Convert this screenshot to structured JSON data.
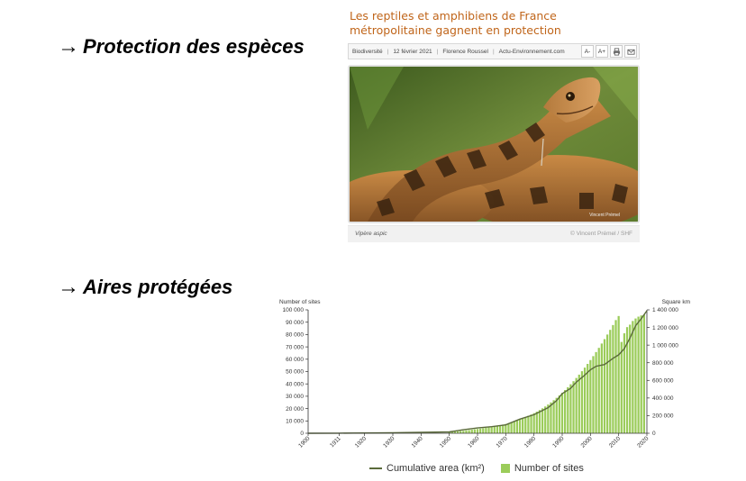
{
  "section1": {
    "arrow": "→",
    "title": "Protection des espèces"
  },
  "section2": {
    "arrow": "→",
    "title": "Aires protégées"
  },
  "article": {
    "title": "Les reptiles et amphibiens de France métropolitaine gagnent en protection",
    "meta": {
      "category": "Biodiversité",
      "date": "12 février 2021",
      "author": "Florence Roussel",
      "source": "Actu-Environnement.com"
    },
    "tools": {
      "font_minus": "A-",
      "font_plus": "A+",
      "print_icon": "printer-icon",
      "email_icon": "envelope-icon"
    },
    "photo_credit_overlay": "Vincent Prémel",
    "caption": "Vipère aspic",
    "credit": "© Vincent Prémel / SHF"
  },
  "chart_data": {
    "type": "bar",
    "ylabel_left": "Number of sites",
    "ylabel_right": "Square km",
    "yticks_left": [
      "100 000",
      "90 000",
      "80 000",
      "70 000",
      "60 000",
      "50 000",
      "40 000",
      "30 000",
      "20 000",
      "10 000",
      "0"
    ],
    "yticks_right": [
      "1 400 000",
      "1 200 000",
      "1 000 000",
      "800 000",
      "600 000",
      "400 000",
      "200 000",
      "0"
    ],
    "xticks": [
      "1900",
      "1911",
      "1920",
      "1930",
      "1940",
      "1950",
      "1960",
      "1970",
      "1980",
      "1990",
      "2000",
      "2010",
      "2020"
    ],
    "ylim_left": [
      0,
      100000
    ],
    "ylim_right": [
      0,
      1400000
    ],
    "xlim": [
      1900,
      2020
    ],
    "legend": {
      "line": "Cumulative area (km²)",
      "bars": "Number of sites"
    },
    "colors": {
      "bars": "#9bcc5a",
      "line": "#5a6a3a"
    },
    "bars": {
      "years": [
        1950,
        1951,
        1952,
        1953,
        1954,
        1955,
        1956,
        1957,
        1958,
        1959,
        1960,
        1961,
        1962,
        1963,
        1964,
        1965,
        1966,
        1967,
        1968,
        1969,
        1970,
        1971,
        1972,
        1973,
        1974,
        1975,
        1976,
        1977,
        1978,
        1979,
        1980,
        1981,
        1982,
        1983,
        1984,
        1985,
        1986,
        1987,
        1988,
        1989,
        1990,
        1991,
        1992,
        1993,
        1994,
        1995,
        1996,
        1997,
        1998,
        1999,
        2000,
        2001,
        2002,
        2003,
        2004,
        2005,
        2006,
        2007,
        2008,
        2009,
        2010,
        2011,
        2012,
        2013,
        2014,
        2015,
        2016,
        2017,
        2018,
        2019
      ],
      "values": [
        1000,
        1200,
        1400,
        1600,
        1800,
        2000,
        2300,
        2600,
        2900,
        3200,
        3500,
        3800,
        4100,
        4400,
        4700,
        5000,
        5500,
        6000,
        6500,
        7000,
        7500,
        8200,
        9000,
        9800,
        10600,
        11400,
        12300,
        13200,
        14200,
        15200,
        16300,
        17500,
        18800,
        20200,
        21700,
        23300,
        25000,
        26800,
        28700,
        30700,
        32800,
        35000,
        37300,
        39700,
        42200,
        44800,
        47500,
        50300,
        53200,
        56200,
        59300,
        62500,
        65800,
        69200,
        72700,
        76300,
        80000,
        83800,
        87700,
        91700,
        95000,
        74000,
        81000,
        86000,
        88000,
        91000,
        93000,
        94500,
        95500,
        96000
      ]
    },
    "line": {
      "years": [
        1900,
        1911,
        1920,
        1930,
        1940,
        1950,
        1955,
        1960,
        1965,
        1970,
        1975,
        1980,
        1985,
        1988,
        1990,
        1993,
        1995,
        1998,
        2000,
        2002,
        2005,
        2008,
        2010,
        2012,
        2014,
        2016,
        2018,
        2020
      ],
      "values": [
        0,
        1000,
        3000,
        6000,
        10000,
        15000,
        40000,
        60000,
        75000,
        95000,
        160000,
        210000,
        290000,
        370000,
        450000,
        510000,
        580000,
        660000,
        720000,
        760000,
        780000,
        850000,
        890000,
        960000,
        1080000,
        1220000,
        1300000,
        1390000
      ]
    }
  }
}
